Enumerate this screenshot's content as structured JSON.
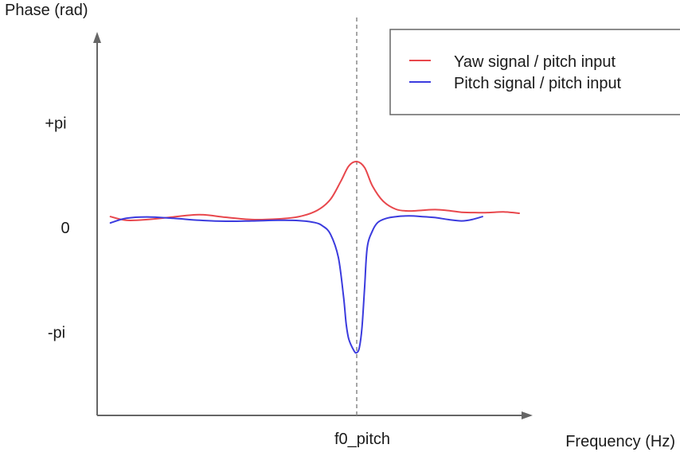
{
  "chart_data": {
    "type": "line",
    "title": "",
    "xlabel": "Frequency (Hz)",
    "ylabel": "Phase (rad)",
    "x_ticks": [
      {
        "label": "f0_pitch",
        "value": 0.0
      }
    ],
    "y_ticks": [
      {
        "label": "+pi",
        "value": 3.14159
      },
      {
        "label": "0",
        "value": 0
      },
      {
        "label": "-pi",
        "value": -3.14159
      }
    ],
    "xlim": [
      -1.0,
      0.6
    ],
    "ylim": [
      -4.9,
      4.9
    ],
    "grid": false,
    "legend_position": "top-right",
    "vline": {
      "x": 0.0,
      "style": "dashed",
      "color": "#888888"
    },
    "series": [
      {
        "name": "Yaw signal / pitch input",
        "color": "#e8474c",
        "points": [
          [
            -0.94,
            0.33
          ],
          [
            -0.88,
            0.22
          ],
          [
            -0.8,
            0.24
          ],
          [
            -0.7,
            0.32
          ],
          [
            -0.6,
            0.39
          ],
          [
            -0.5,
            0.31
          ],
          [
            -0.4,
            0.24
          ],
          [
            -0.3,
            0.26
          ],
          [
            -0.22,
            0.33
          ],
          [
            -0.15,
            0.52
          ],
          [
            -0.1,
            0.85
          ],
          [
            -0.06,
            1.4
          ],
          [
            -0.03,
            1.85
          ],
          [
            0.0,
            1.98
          ],
          [
            0.03,
            1.8
          ],
          [
            0.06,
            1.25
          ],
          [
            0.1,
            0.8
          ],
          [
            0.15,
            0.55
          ],
          [
            0.2,
            0.5
          ],
          [
            0.25,
            0.52
          ],
          [
            0.3,
            0.54
          ],
          [
            0.35,
            0.51
          ],
          [
            0.4,
            0.46
          ],
          [
            0.45,
            0.45
          ],
          [
            0.5,
            0.45
          ],
          [
            0.56,
            0.47
          ],
          [
            0.62,
            0.43
          ]
        ]
      },
      {
        "name": "Pitch signal / pitch input",
        "color": "#3b3bde",
        "points": [
          [
            -0.94,
            0.14
          ],
          [
            -0.88,
            0.28
          ],
          [
            -0.8,
            0.32
          ],
          [
            -0.7,
            0.28
          ],
          [
            -0.6,
            0.22
          ],
          [
            -0.5,
            0.19
          ],
          [
            -0.4,
            0.2
          ],
          [
            -0.3,
            0.22
          ],
          [
            -0.22,
            0.21
          ],
          [
            -0.16,
            0.15
          ],
          [
            -0.13,
            0.05
          ],
          [
            -0.1,
            -0.2
          ],
          [
            -0.07,
            -0.9
          ],
          [
            -0.05,
            -2.1
          ],
          [
            -0.04,
            -2.9
          ],
          [
            -0.03,
            -3.35
          ],
          [
            -0.01,
            -3.7
          ],
          [
            0.0,
            -3.75
          ],
          [
            0.01,
            -3.6
          ],
          [
            0.02,
            -3.0
          ],
          [
            0.03,
            -1.8
          ],
          [
            0.04,
            -0.6
          ],
          [
            0.06,
            -0.1
          ],
          [
            0.08,
            0.15
          ],
          [
            0.11,
            0.27
          ],
          [
            0.15,
            0.33
          ],
          [
            0.2,
            0.35
          ],
          [
            0.25,
            0.33
          ],
          [
            0.3,
            0.3
          ],
          [
            0.35,
            0.24
          ],
          [
            0.4,
            0.2
          ],
          [
            0.44,
            0.24
          ],
          [
            0.48,
            0.33
          ]
        ]
      }
    ]
  }
}
